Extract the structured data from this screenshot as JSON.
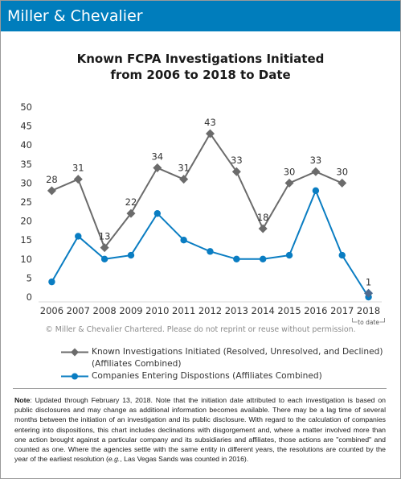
{
  "brand": {
    "name": "Miller & Chevalier",
    "bar_color": "#007dbc"
  },
  "title_line1": "Known FCPA Investigations Initiated",
  "title_line2": "from 2006 to 2018 to Date",
  "chart_data": {
    "type": "line",
    "categories": [
      "2006",
      "2007",
      "2008",
      "2009",
      "2010",
      "2011",
      "2012",
      "2013",
      "2014",
      "2015",
      "2016",
      "2017",
      "2018"
    ],
    "category_note": {
      "category": "2018",
      "text": "to date"
    },
    "ylim": [
      0,
      50
    ],
    "yticks": [
      0,
      5,
      10,
      15,
      20,
      25,
      30,
      35,
      40,
      45,
      50
    ],
    "grid": false,
    "legend_position": "bottom",
    "series": [
      {
        "name": "Known Investigations Initiated (Resolved, Unresolved, and Declined) (Affiliates Combined)",
        "color": "#6b6b6b",
        "marker": "diamond",
        "values": [
          28,
          31,
          13,
          22,
          34,
          31,
          43,
          33,
          18,
          30,
          33,
          30,
          null
        ],
        "labels": [
          "28",
          "31",
          "13",
          "22",
          "34",
          "31",
          "43",
          "33",
          "18",
          "30",
          "33",
          "30",
          null
        ]
      },
      {
        "name": "2018 to date",
        "color": "#4d6b8f",
        "marker": "diamond",
        "values": [
          null,
          null,
          null,
          null,
          null,
          null,
          null,
          null,
          null,
          null,
          null,
          null,
          1
        ],
        "labels": [
          null,
          null,
          null,
          null,
          null,
          null,
          null,
          null,
          null,
          null,
          null,
          null,
          "1"
        ]
      },
      {
        "name": "Companies Entering Dispostions (Affiliates Combined)",
        "color": "#0a7dc2",
        "marker": "circle",
        "values": [
          4,
          16,
          10,
          11,
          22,
          15,
          12,
          10,
          10,
          11,
          28,
          11,
          0
        ]
      }
    ]
  },
  "copyright": "© Miller & Chevalier Chartered. Please do not reprint or reuse without permission.",
  "legend": {
    "item1_line1": "Known Investigations Initiated (Resolved, Unresolved, and Declined)",
    "item1_line2": "(Affiliates Combined)",
    "item2": "Companies Entering Dispostions (Affiliates Combined)"
  },
  "note": {
    "label": "Note",
    "text_before_eg": ": Updated through February 13, 2018. Note that the initiation date attributed to each investigation is based on public disclosures and may change as additional information becomes available. There may be a lag time of several months between the initiation of an investigation and its public disclosure. With regard to the calculation of companies entering into dispositions, this chart includes declinations with disgorgement and, where a matter involved more than one action brought against a particular company and its subsidiaries and affiliates, those actions are \"combined\" and counted as one. Where the agencies settle with the same entity in different years, the resolutions are counted by the year of the earliest resolution (",
    "eg": "e.g.",
    "text_after_eg": ", Las Vegas Sands was counted in 2016)."
  }
}
